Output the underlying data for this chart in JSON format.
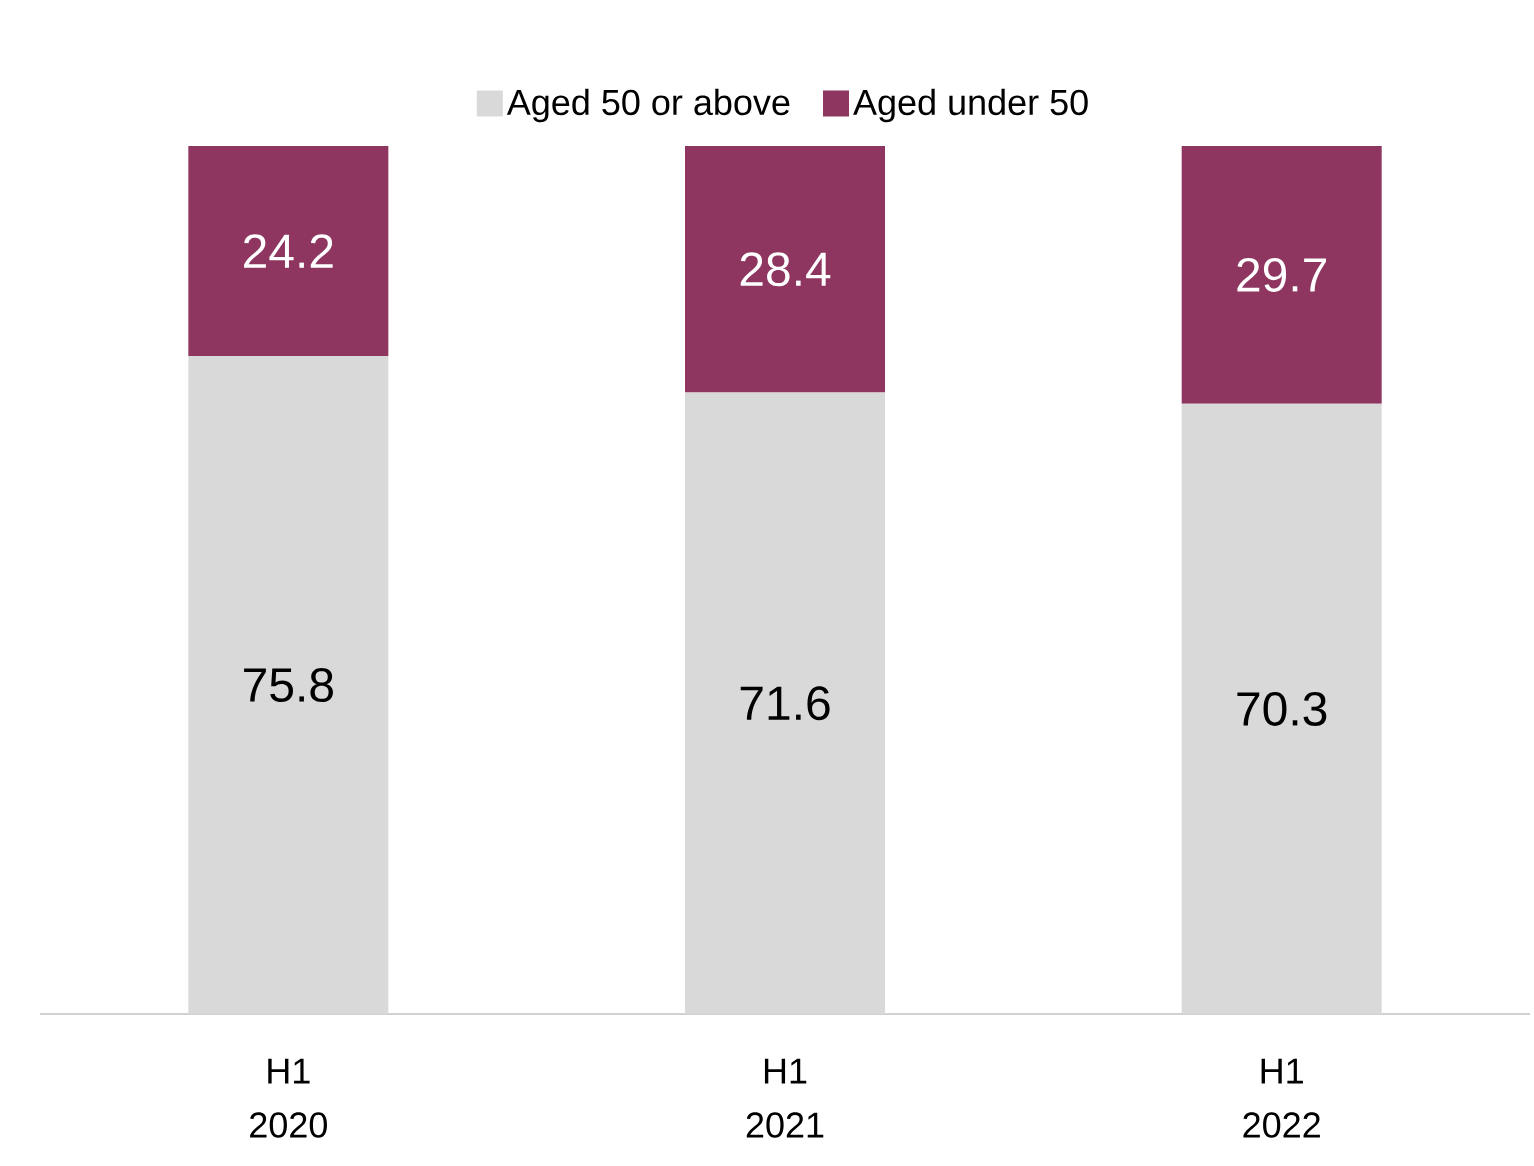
{
  "chart_data": {
    "type": "bar",
    "stacked": true,
    "data_labels": true,
    "legend": "top",
    "categories": [
      "H1 2020",
      "H1 2021",
      "H1 2022"
    ],
    "series": [
      {
        "name": "Aged 50 or above",
        "color": "#d9d9d9",
        "values": [
          75.8,
          71.6,
          70.3
        ]
      },
      {
        "name": "Aged under 50",
        "color": "#8e3560",
        "values": [
          24.2,
          28.4,
          29.7
        ]
      }
    ]
  }
}
